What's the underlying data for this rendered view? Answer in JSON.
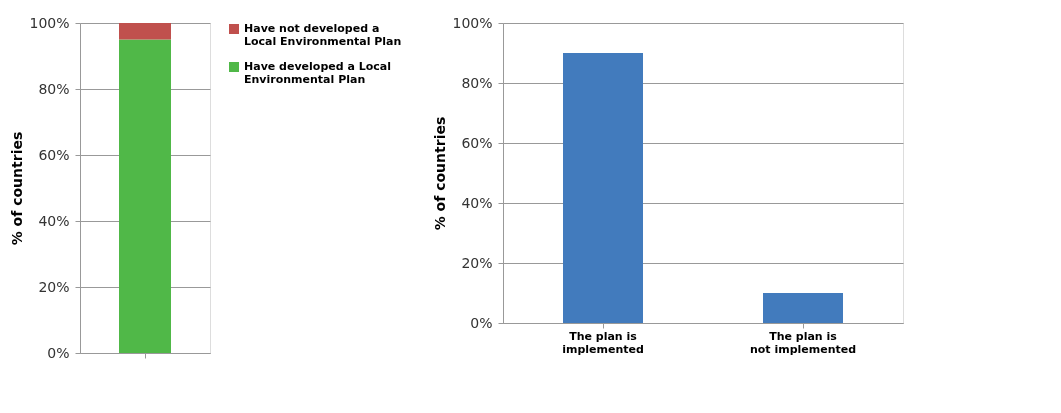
{
  "chart_data": [
    {
      "type": "bar",
      "stacked": true,
      "categories": [
        null
      ],
      "ylabel": "% of countries",
      "ylim": [
        0,
        100
      ],
      "yticks": [
        {
          "value": 0,
          "label": "0%"
        },
        {
          "value": 20,
          "label": "20%"
        },
        {
          "value": 40,
          "label": "40%"
        },
        {
          "value": 60,
          "label": "60%"
        },
        {
          "value": 80,
          "label": "80%"
        },
        {
          "value": 100,
          "label": "100%"
        }
      ],
      "grid": "y",
      "legend": "right",
      "tick_labels": "y",
      "series": [
        {
          "name": "Have developed a Local Environmental Plan",
          "color": "#50b848",
          "values": [
            95
          ]
        },
        {
          "name": "Have not developed a Local Environmental Plan",
          "color": "#c0504d",
          "values": [
            5
          ]
        }
      ]
    },
    {
      "type": "bar",
      "categories": [
        "The plan is implemented",
        "The plan is not implemented"
      ],
      "ylabel": "% of countries",
      "ylim": [
        0,
        100
      ],
      "yticks": [
        {
          "value": 0,
          "label": "0%"
        },
        {
          "value": 20,
          "label": "20%"
        },
        {
          "value": 40,
          "label": "40%"
        },
        {
          "value": 60,
          "label": "60%"
        },
        {
          "value": 80,
          "label": "80%"
        },
        {
          "value": 100,
          "label": "100%"
        }
      ],
      "grid": "y",
      "series": [
        {
          "color": "#427bbd",
          "values": [
            90,
            10
          ]
        }
      ]
    }
  ]
}
